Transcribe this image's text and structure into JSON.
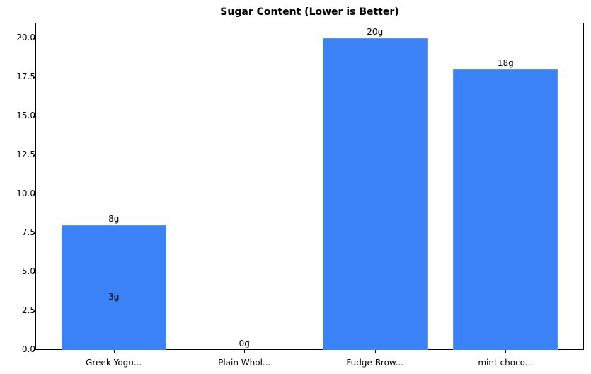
{
  "chart_data": {
    "type": "bar",
    "title": "Sugar Content (Lower is Better)",
    "xlabel": "",
    "ylabel": "",
    "categories": [
      "Greek Yogu...",
      "Plain Whol...",
      "Fudge Brow...",
      "mint choco..."
    ],
    "values": [
      8,
      0,
      20,
      18
    ],
    "value_labels": [
      "8g",
      "0g",
      "20g",
      "18g"
    ],
    "extra_annotations": [
      {
        "text": "3g",
        "category": "Greek Yogu...",
        "y": 3
      }
    ],
    "ylim": [
      0,
      21
    ],
    "yticks": [
      0.0,
      2.5,
      5.0,
      7.5,
      10.0,
      12.5,
      15.0,
      17.5,
      20.0
    ],
    "ytick_labels": [
      "0.0",
      "2.5",
      "5.0",
      "7.5",
      "10.0",
      "12.5",
      "15.0",
      "17.5",
      "20.0"
    ],
    "grid": false,
    "legend": null,
    "bar_color": "#3b82f6"
  }
}
